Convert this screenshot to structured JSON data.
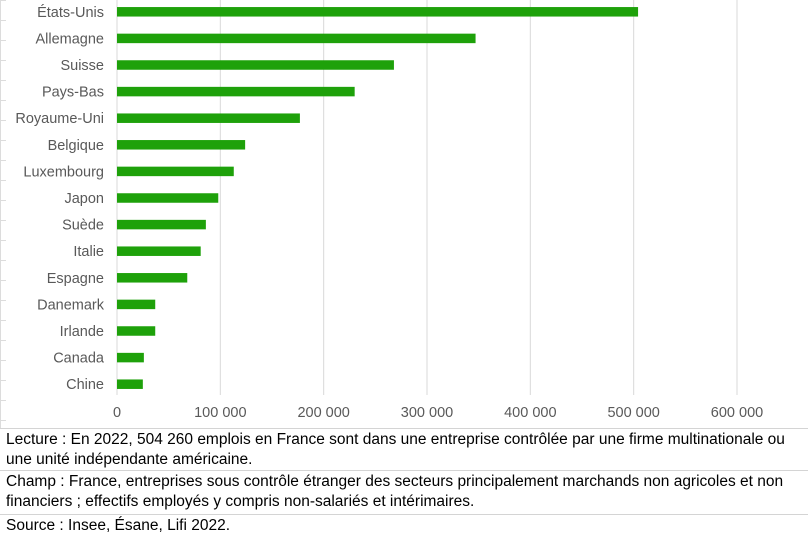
{
  "chart_data": {
    "type": "bar",
    "orientation": "horizontal",
    "categories": [
      "États-Unis",
      "Allemagne",
      "Suisse",
      "Pays-Bas",
      "Royaume-Uni",
      "Belgique",
      "Luxembourg",
      "Japon",
      "Suède",
      "Italie",
      "Espagne",
      "Danemark",
      "Irlande",
      "Canada",
      "Chine"
    ],
    "values": [
      504260,
      347000,
      268000,
      230000,
      177000,
      124000,
      113000,
      98000,
      86000,
      81000,
      68000,
      37000,
      37000,
      26000,
      25000
    ],
    "xlim": [
      0,
      600000
    ],
    "xticks": [
      0,
      100000,
      200000,
      300000,
      400000,
      500000,
      600000
    ],
    "xtick_labels": [
      "0",
      "100 000",
      "200 000",
      "300 000",
      "400 000",
      "500 000",
      "600 000"
    ],
    "grid": "vertical",
    "legend": "none",
    "bar_color": "#1ea10a",
    "grid_color": "#d9d9d9"
  },
  "notes": {
    "lecture": "Lecture : En 2022, 504 260 emplois en France sont dans une entreprise contrôlée par une firme multinationale ou une unité indépendante américaine.",
    "champ": "Champ : France, entreprises sous contrôle étranger des secteurs principalement marchands non agricoles et non financiers ; effectifs employés y compris non-salariés et intérimaires.",
    "source": "Source : Insee, Ésane, Lifi 2022."
  }
}
